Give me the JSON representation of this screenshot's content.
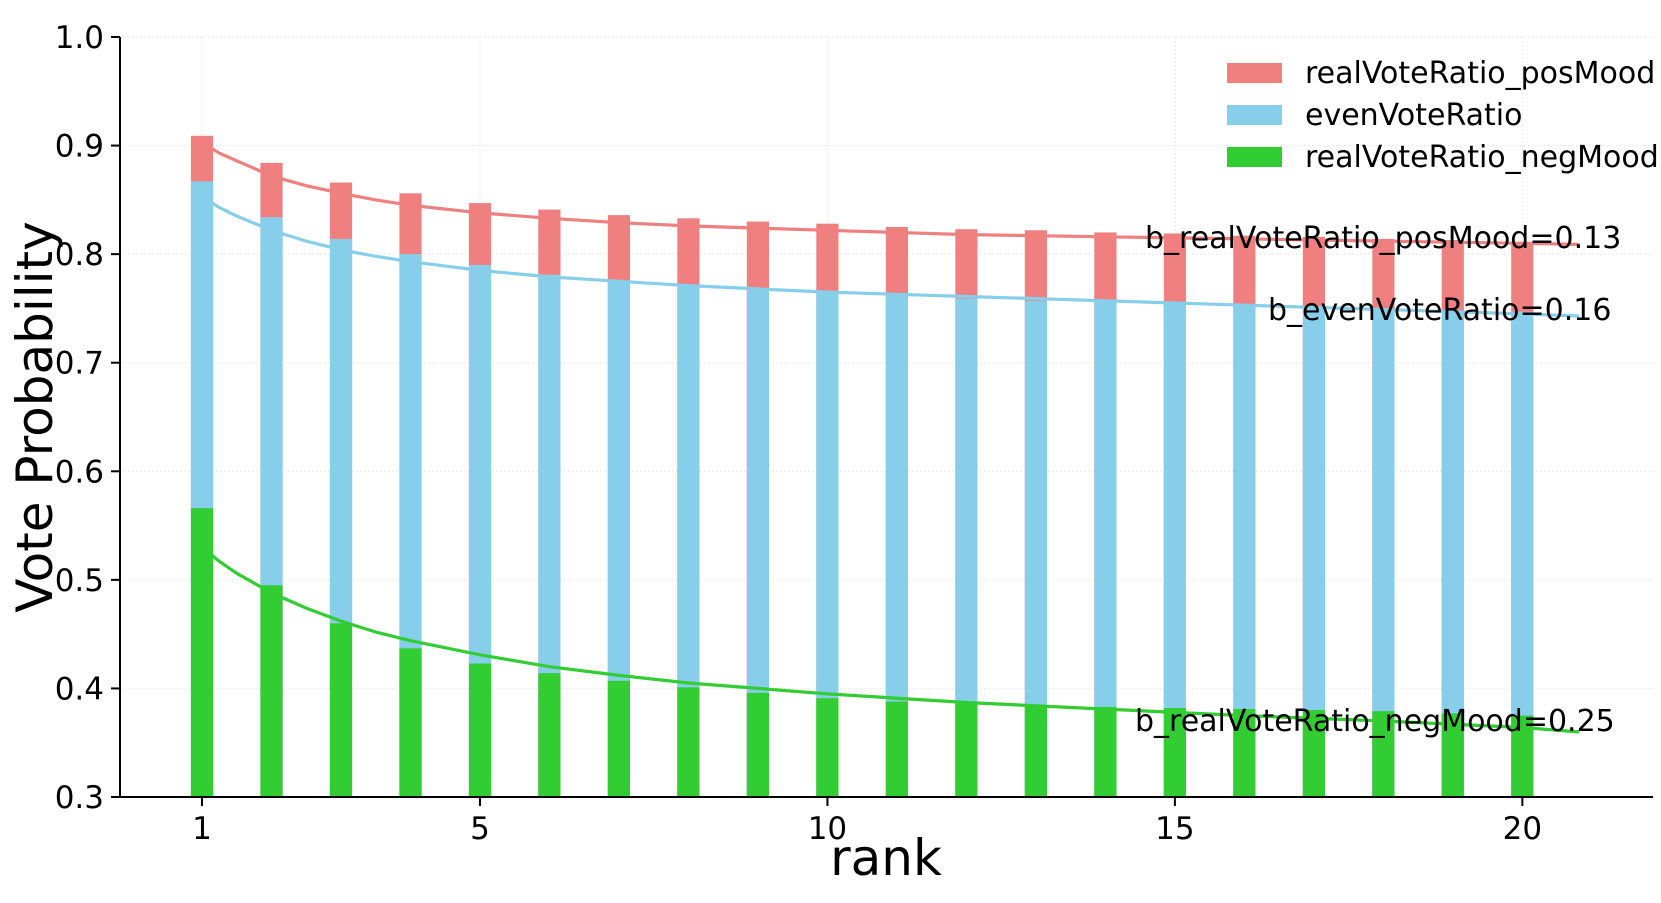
{
  "figure": {
    "background": "#ffffff",
    "text_color": "#000000"
  },
  "chart_data": {
    "type": "bar",
    "title": "",
    "xlabel": "rank",
    "ylabel": "Vote Probability",
    "xlim": [
      -0.18,
      21.88
    ],
    "ylim": [
      0.3,
      1.0
    ],
    "grid": true,
    "grid_color": "#e6e6e6",
    "axis_color": "#000000",
    "legend_position": "upper right",
    "x_ticks": [
      1,
      5,
      10,
      15,
      20
    ],
    "x_tick_labels": [
      "1",
      "5",
      "10",
      "15",
      "20"
    ],
    "y_ticks": [
      0.3,
      0.4,
      0.5,
      0.6,
      0.7,
      0.8,
      0.9,
      1.0
    ],
    "y_tick_labels": [
      "0.3",
      "0.4",
      "0.5",
      "0.6",
      "0.7",
      "0.8",
      "0.9",
      "1.0"
    ],
    "categories": [
      1,
      2,
      3,
      4,
      5,
      6,
      7,
      8,
      9,
      10,
      11,
      12,
      13,
      14,
      15,
      16,
      17,
      18,
      19,
      20
    ],
    "bar_width_ranks": 0.32,
    "series": [
      {
        "name": "realVoteRatio_posMood",
        "color": "#F08080",
        "values": [
          0.909,
          0.884,
          0.866,
          0.856,
          0.847,
          0.841,
          0.836,
          0.833,
          0.83,
          0.828,
          0.825,
          0.823,
          0.822,
          0.82,
          0.819,
          0.817,
          0.816,
          0.814,
          0.813,
          0.811
        ]
      },
      {
        "name": "evenVoteRatio",
        "color": "#87CEEB",
        "values": [
          0.867,
          0.834,
          0.814,
          0.8,
          0.79,
          0.781,
          0.775,
          0.771,
          0.768,
          0.766,
          0.762,
          0.759,
          0.757,
          0.756,
          0.754,
          0.752,
          0.751,
          0.75,
          0.748,
          0.747
        ]
      },
      {
        "name": "realVoteRatio_negMood",
        "color": "#32CD32",
        "values": [
          0.566,
          0.495,
          0.46,
          0.437,
          0.423,
          0.414,
          0.407,
          0.401,
          0.396,
          0.391,
          0.388,
          0.386,
          0.384,
          0.383,
          0.382,
          0.381,
          0.38,
          0.379,
          0.377,
          0.375
        ]
      }
    ],
    "fit_curves": [
      {
        "series": "realVoteRatio_posMood",
        "color": "#F08080",
        "points": [
          [
            1,
            0.903
          ],
          [
            1.25,
            0.893
          ],
          [
            1.5,
            0.886
          ],
          [
            2,
            0.872
          ],
          [
            2.5,
            0.863
          ],
          [
            3,
            0.856
          ],
          [
            3.5,
            0.85
          ],
          [
            4,
            0.845
          ],
          [
            5,
            0.838
          ],
          [
            6,
            0.833
          ],
          [
            7,
            0.829
          ],
          [
            8,
            0.826
          ],
          [
            9,
            0.824
          ],
          [
            10,
            0.822
          ],
          [
            12,
            0.818
          ],
          [
            14,
            0.816
          ],
          [
            16,
            0.814
          ],
          [
            18,
            0.812
          ],
          [
            20,
            0.81
          ],
          [
            20.8,
            0.809
          ]
        ]
      },
      {
        "series": "evenVoteRatio",
        "color": "#87CEEB",
        "points": [
          [
            1,
            0.853
          ],
          [
            1.25,
            0.843
          ],
          [
            1.5,
            0.835
          ],
          [
            2,
            0.822
          ],
          [
            2.5,
            0.812
          ],
          [
            3,
            0.804
          ],
          [
            3.5,
            0.798
          ],
          [
            4,
            0.793
          ],
          [
            5,
            0.785
          ],
          [
            6,
            0.779
          ],
          [
            7,
            0.775
          ],
          [
            8,
            0.771
          ],
          [
            9,
            0.768
          ],
          [
            10,
            0.765
          ],
          [
            12,
            0.761
          ],
          [
            14,
            0.757
          ],
          [
            16,
            0.753
          ],
          [
            18,
            0.749
          ],
          [
            20,
            0.745
          ],
          [
            20.8,
            0.743
          ]
        ]
      },
      {
        "series": "realVoteRatio_negMood",
        "color": "#32CD32",
        "points": [
          [
            1,
            0.53
          ],
          [
            1.25,
            0.517
          ],
          [
            1.5,
            0.506
          ],
          [
            2,
            0.488
          ],
          [
            2.5,
            0.474
          ],
          [
            3,
            0.462
          ],
          [
            3.5,
            0.452
          ],
          [
            4,
            0.444
          ],
          [
            5,
            0.431
          ],
          [
            6,
            0.42
          ],
          [
            7,
            0.412
          ],
          [
            8,
            0.405
          ],
          [
            9,
            0.4
          ],
          [
            10,
            0.395
          ],
          [
            12,
            0.387
          ],
          [
            14,
            0.381
          ],
          [
            16,
            0.375
          ],
          [
            18,
            0.37
          ],
          [
            20,
            0.364
          ],
          [
            20.8,
            0.36
          ]
        ]
      }
    ],
    "annotations": [
      {
        "text": "b_realVoteRatio_posMood=0.13",
        "x": 14.57,
        "y": 0.814
      },
      {
        "text": "b_evenVoteRatio=0.16",
        "x": 16.34,
        "y": 0.748
      },
      {
        "text": "b_realVoteRatio_negMood=0.25",
        "x": 14.43,
        "y": 0.369
      }
    ],
    "legend": {
      "entries": [
        {
          "label": "realVoteRatio_posMood",
          "color": "#F08080"
        },
        {
          "label": "evenVoteRatio",
          "color": "#87CEEB"
        },
        {
          "label": "realVoteRatio_negMood",
          "color": "#32CD32"
        }
      ]
    }
  }
}
